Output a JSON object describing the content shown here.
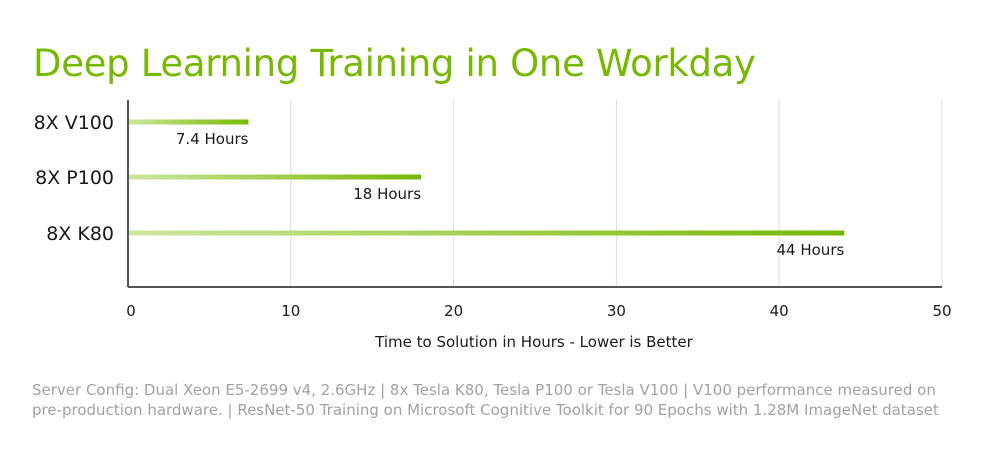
{
  "page": {
    "title": "Deep Learning Training in One Workday",
    "footnote": "Server Config: Dual Xeon E5-2699 v4, 2.6GHz  |  8x Tesla K80, Tesla P100 or Tesla V100  |  V100 performance measured on pre-production hardware.  |  ResNet-50 Training on Microsoft Cognitive Toolkit for 90 Epochs with 1.28M ImageNet dataset"
  },
  "colors": {
    "brand_green": "#76b900",
    "bar_light": "#cde6a0",
    "bar_dark": "#76b900",
    "axis": "#555555",
    "grid": "#dddddd",
    "text": "#1a1a1a",
    "footnote": "#a2a2a2"
  },
  "chart_data": {
    "type": "bar",
    "orientation": "horizontal",
    "title": "Deep Learning Training in One Workday",
    "categories": [
      "8X V100",
      "8X P100",
      "8X K80"
    ],
    "values": [
      7.4,
      18,
      44
    ],
    "data_labels": [
      "7.4 Hours",
      "18 Hours",
      "44 Hours"
    ],
    "xlabel": "Time to Solution in Hours - Lower is Better",
    "ylabel": "",
    "xlim": [
      0,
      50
    ],
    "xticks": [
      0,
      10,
      20,
      30,
      40,
      50
    ],
    "xtick_labels": [
      "0",
      "10",
      "20",
      "30",
      "40",
      "50"
    ],
    "grid": "vertical",
    "legend": "none"
  }
}
